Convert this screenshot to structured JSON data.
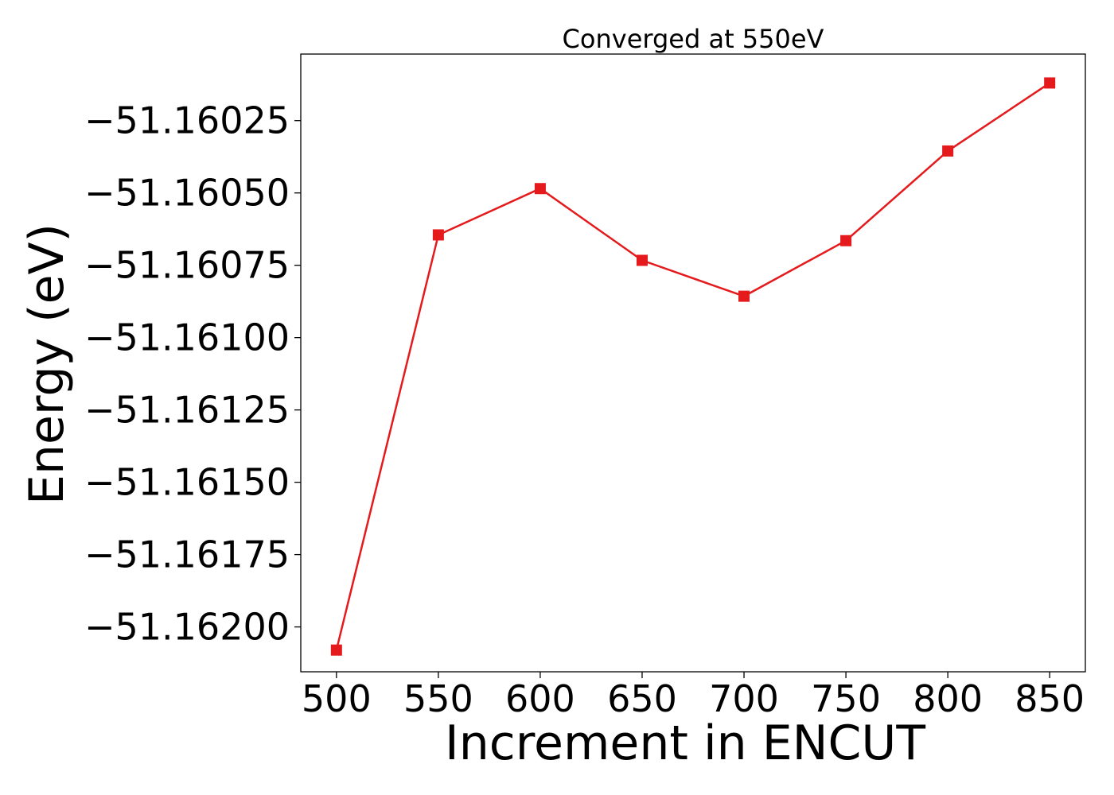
{
  "chart_data": {
    "type": "line",
    "title": "Converged at 550eV",
    "xlabel": "Increment in ENCUT",
    "ylabel": "Energy (eV)",
    "x": [
      500,
      550,
      600,
      650,
      700,
      750,
      800,
      850
    ],
    "series": [
      {
        "values": [
          -51.16208,
          -51.160645,
          -51.160485,
          -51.160733,
          -51.160857,
          -51.160665,
          -51.160355,
          -51.16012
        ],
        "color": "#e41a1c",
        "marker": "square"
      }
    ],
    "x_ticks": [
      500,
      550,
      600,
      650,
      700,
      750,
      800,
      850
    ],
    "x_tick_labels": [
      "500",
      "550",
      "600",
      "650",
      "700",
      "750",
      "800",
      "850"
    ],
    "y_ticks": [
      -51.16025,
      -51.1605,
      -51.16075,
      -51.161,
      -51.16125,
      -51.1615,
      -51.16175,
      -51.162
    ],
    "y_tick_labels": [
      "−51.16025",
      "−51.16050",
      "−51.16075",
      "−51.16100",
      "−51.16125",
      "−51.16150",
      "−51.16175",
      "−51.16200"
    ],
    "xlim": [
      482.5,
      867.5
    ],
    "ylim": [
      -51.162155,
      -51.16002
    ],
    "grid": false,
    "legend": "none"
  }
}
